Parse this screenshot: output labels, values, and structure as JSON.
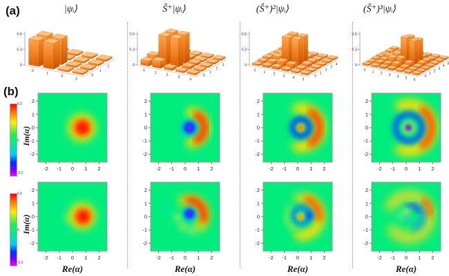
{
  "panel_a": "(a)",
  "panel_b": "(b)",
  "columns": [
    {
      "header": "|ψᵢ⟩"
    },
    {
      "header": "Ŝ⁺|ψᵢ⟩"
    },
    {
      "header": "(Ŝ⁺)²|ψᵢ⟩"
    },
    {
      "header": "(Ŝ⁺)³|ψᵢ⟩"
    }
  ],
  "axes": {
    "x_label": "Re(α)",
    "y_label": "Im(α)",
    "ticks": [
      "-2",
      "-1",
      "0",
      "1",
      "2"
    ],
    "range": 2.6
  },
  "colorbar": {
    "top_label": "0.2",
    "mid_label": "0",
    "bottom_label": "-0.2",
    "stops": [
      [
        "#ff0000",
        0
      ],
      [
        "#ff7f00",
        12
      ],
      [
        "#ffee00",
        25
      ],
      [
        "#22ee55",
        42
      ],
      [
        "#00ee88",
        55
      ],
      [
        "#00ccff",
        70
      ],
      [
        "#0033ff",
        81
      ],
      [
        "#7700ff",
        91
      ],
      [
        "#ff00ff",
        100
      ]
    ]
  },
  "colors": {
    "wigner_bg": "#00ec7c",
    "frame": "#9a9a9a",
    "bar_top": "#ffc182",
    "bar_front_light": "#ffa64d",
    "bar_front_dark": "#e06000",
    "bar_side_light": "#ff8c26",
    "bar_side_dark": "#c35300",
    "axis_text": "#333333"
  },
  "chart_data": [
    {
      "type": "bar3d",
      "title": "density matrix of |psi_i>",
      "zmax": 0.6,
      "zticks": [
        [
          "0",
          0
        ],
        [
          "0.3",
          0.3
        ],
        [
          "0.6",
          0.6
        ]
      ],
      "heights": [
        [
          0.5,
          0.5,
          0.03,
          0.03
        ],
        [
          0.5,
          0.5,
          0.03,
          0.03
        ],
        [
          0.03,
          0.03,
          0.03,
          0.03
        ],
        [
          0.03,
          0.03,
          0.03,
          0.03
        ]
      ]
    },
    {
      "type": "bar3d",
      "title": "density matrix of S+|psi_i>",
      "zmax": 0.6,
      "zticks": [
        [
          "0",
          0
        ],
        [
          "0.3",
          0.3
        ],
        [
          "0.6",
          0.6
        ]
      ],
      "heights": [
        [
          0.1,
          0.14,
          0.05,
          0.03,
          0.03
        ],
        [
          0.14,
          0.55,
          0.55,
          0.05,
          0.03
        ],
        [
          0.05,
          0.55,
          0.55,
          0.05,
          0.03
        ],
        [
          0.03,
          0.05,
          0.05,
          0.03,
          0.03
        ],
        [
          0.03,
          0.03,
          0.03,
          0.03,
          0.03
        ]
      ]
    },
    {
      "type": "bar3d",
      "title": "density matrix of (S+)^2|psi_i>",
      "zmax": 0.6,
      "zticks": [
        [
          "0",
          0
        ],
        [
          "0.3",
          0.3
        ],
        [
          "0.6",
          0.6
        ]
      ],
      "heights": [
        [
          0.03,
          0.04,
          0.05,
          0.04,
          0.03,
          0.03
        ],
        [
          0.04,
          0.06,
          0.1,
          0.08,
          0.04,
          0.03
        ],
        [
          0.05,
          0.1,
          0.5,
          0.5,
          0.06,
          0.03
        ],
        [
          0.04,
          0.08,
          0.5,
          0.5,
          0.06,
          0.03
        ],
        [
          0.03,
          0.04,
          0.06,
          0.06,
          0.04,
          0.03
        ],
        [
          0.03,
          0.03,
          0.03,
          0.03,
          0.03,
          0.03
        ]
      ]
    },
    {
      "type": "bar3d",
      "title": "density matrix of (S+)^3|psi_i>",
      "zmax": 0.6,
      "zticks": [
        [
          "0",
          0
        ],
        [
          "0.3",
          0.3
        ],
        [
          "0.6",
          0.6
        ]
      ],
      "heights": [
        [
          0.03,
          0.03,
          0.04,
          0.04,
          0.03,
          0.03,
          0.03
        ],
        [
          0.03,
          0.05,
          0.06,
          0.08,
          0.05,
          0.03,
          0.03
        ],
        [
          0.04,
          0.06,
          0.12,
          0.14,
          0.08,
          0.04,
          0.03
        ],
        [
          0.04,
          0.08,
          0.14,
          0.48,
          0.45,
          0.06,
          0.03
        ],
        [
          0.03,
          0.05,
          0.08,
          0.45,
          0.42,
          0.06,
          0.03
        ],
        [
          0.03,
          0.03,
          0.04,
          0.06,
          0.06,
          0.04,
          0.03
        ],
        [
          0.03,
          0.03,
          0.03,
          0.03,
          0.03,
          0.03,
          0.03
        ]
      ]
    },
    {
      "type": "heatmap",
      "title": "Wigner function, ideal |psi_i>",
      "features": [
        {
          "kind": "disc",
          "x": 0.7,
          "y": 0.0,
          "r": 1.0,
          "color": "#ffee00",
          "blur": 7
        },
        {
          "kind": "disc",
          "x": 0.72,
          "y": 0.0,
          "r": 0.72,
          "color": "#ff8800",
          "blur": 5
        },
        {
          "kind": "disc",
          "x": 0.75,
          "y": 0.0,
          "r": 0.5,
          "color": "#ff1500",
          "blur": 4
        }
      ]
    },
    {
      "type": "heatmap",
      "title": "Wigner function, ideal S+|psi_i>",
      "features": [
        {
          "kind": "arc",
          "x": 0.35,
          "y": 0,
          "r": 1.15,
          "width": 0.75,
          "a0": -85,
          "a1": 85,
          "color": "#ffe000",
          "blur": 6
        },
        {
          "kind": "arc",
          "x": 0.35,
          "y": 0,
          "r": 1.1,
          "width": 0.5,
          "a0": -62,
          "a1": 62,
          "color": "#ff2200",
          "blur": 5
        },
        {
          "kind": "disc",
          "x": 0.33,
          "y": 0,
          "r": 0.6,
          "color": "#00bbee",
          "blur": 4
        },
        {
          "kind": "disc",
          "x": 0.33,
          "y": 0,
          "r": 0.42,
          "color": "#0033ff",
          "blur": 3
        },
        {
          "kind": "disc",
          "x": 0.33,
          "y": 0,
          "r": 0.2,
          "color": "#8822ff",
          "blur": 2
        }
      ]
    },
    {
      "type": "heatmap",
      "title": "Wigner function, ideal (S+)^2|psi_i>",
      "features": [
        {
          "kind": "arc",
          "x": 0.25,
          "y": 0,
          "r": 1.45,
          "width": 0.8,
          "a0": -100,
          "a1": 100,
          "color": "#ffe000",
          "blur": 6
        },
        {
          "kind": "arc",
          "x": 0.25,
          "y": 0,
          "r": 1.4,
          "width": 0.5,
          "a0": -58,
          "a1": 58,
          "color": "#ff3300",
          "blur": 5
        },
        {
          "kind": "arc",
          "x": 0.25,
          "y": 0,
          "r": 0.62,
          "width": 0.42,
          "a0": 0,
          "a1": 360,
          "color": "#0044ff",
          "blur": 4
        },
        {
          "kind": "disc",
          "x": 0.22,
          "y": 0,
          "r": 0.3,
          "color": "#ffcc00",
          "blur": 3
        },
        {
          "kind": "disc",
          "x": 0.22,
          "y": 0,
          "r": 0.16,
          "color": "#ff5500",
          "blur": 2
        }
      ]
    },
    {
      "type": "heatmap",
      "title": "Wigner function, ideal (S+)^3|psi_i>",
      "features": [
        {
          "kind": "arc",
          "x": 0.2,
          "y": 0,
          "r": 1.75,
          "width": 0.8,
          "a0": -110,
          "a1": 110,
          "color": "#ffe000",
          "blur": 6
        },
        {
          "kind": "arc",
          "x": 0.2,
          "y": 0,
          "r": 1.72,
          "width": 0.5,
          "a0": -52,
          "a1": 52,
          "color": "#ff4400",
          "blur": 5
        },
        {
          "kind": "arc",
          "x": 0.2,
          "y": 0,
          "r": 1.0,
          "width": 0.4,
          "a0": 0,
          "a1": 360,
          "color": "#0055ff",
          "blur": 4
        },
        {
          "kind": "disc",
          "x": 0.18,
          "y": 0,
          "r": 0.45,
          "color": "#cbee44",
          "blur": 4
        },
        {
          "kind": "disc",
          "x": 0.18,
          "y": 0,
          "r": 0.26,
          "color": "#2233ee",
          "blur": 3
        },
        {
          "kind": "disc",
          "x": 0.18,
          "y": 0,
          "r": 0.14,
          "color": "#8822ee",
          "blur": 2
        }
      ]
    },
    {
      "type": "heatmap",
      "title": "Wigner function, reconstructed |psi_i>",
      "features": [
        {
          "kind": "disc",
          "x": -0.75,
          "y": 0.55,
          "r": 0.3,
          "color": "#00ddcc",
          "blur": 6,
          "opacity": 0.75
        },
        {
          "kind": "disc",
          "x": -0.45,
          "y": -0.8,
          "r": 0.3,
          "color": "#00ddcc",
          "blur": 6,
          "opacity": 0.75
        },
        {
          "kind": "disc",
          "x": -0.15,
          "y": -0.1,
          "r": 0.35,
          "color": "#77ee44",
          "blur": 6,
          "opacity": 0.9
        },
        {
          "kind": "disc",
          "x": 0.72,
          "y": 0.05,
          "r": 0.95,
          "color": "#ffee00",
          "blur": 7
        },
        {
          "kind": "disc",
          "x": 0.78,
          "y": 0.02,
          "r": 0.7,
          "color": "#ff8800",
          "blur": 5
        },
        {
          "kind": "disc",
          "x": 0.8,
          "y": 0.0,
          "r": 0.48,
          "color": "#ff1500",
          "blur": 4
        }
      ]
    },
    {
      "type": "heatmap",
      "title": "Wigner function, reconstructed S+|psi_i>",
      "features": [
        {
          "kind": "arc",
          "x": 0.3,
          "y": 0.1,
          "r": 1.15,
          "width": 0.75,
          "a0": -45,
          "a1": 110,
          "color": "#ffe000",
          "blur": 6
        },
        {
          "kind": "arc",
          "x": 0.3,
          "y": 0.1,
          "r": 1.12,
          "width": 0.5,
          "a0": -18,
          "a1": 92,
          "color": "#ff2200",
          "blur": 5
        },
        {
          "kind": "disc",
          "x": -0.55,
          "y": -0.05,
          "r": 0.3,
          "color": "#aaee55",
          "blur": 5
        },
        {
          "kind": "disc",
          "x": -0.15,
          "y": -0.75,
          "r": 0.3,
          "color": "#aaee55",
          "blur": 5
        },
        {
          "kind": "disc",
          "x": 0.5,
          "y": -1.05,
          "r": 0.25,
          "color": "#ccee66",
          "blur": 5
        },
        {
          "kind": "disc",
          "x": -1.35,
          "y": 0.6,
          "r": 0.3,
          "color": "#00ddcc",
          "blur": 6,
          "opacity": 0.6
        },
        {
          "kind": "disc",
          "x": 0.32,
          "y": 0.2,
          "r": 0.5,
          "color": "#00bbee",
          "blur": 4
        },
        {
          "kind": "disc",
          "x": 0.33,
          "y": 0.22,
          "r": 0.36,
          "color": "#0033ff",
          "blur": 3
        },
        {
          "kind": "disc",
          "x": 0.33,
          "y": 0.22,
          "r": 0.17,
          "color": "#7722ff",
          "blur": 2
        }
      ]
    },
    {
      "type": "heatmap",
      "title": "Wigner function, reconstructed (S+)^2|psi_i>",
      "features": [
        {
          "kind": "arc",
          "x": 0.25,
          "y": 0,
          "r": 1.42,
          "width": 0.75,
          "a0": -95,
          "a1": 95,
          "color": "#ffe000",
          "blur": 6
        },
        {
          "kind": "arc",
          "x": 0.25,
          "y": 0,
          "r": 1.38,
          "width": 0.5,
          "a0": -5,
          "a1": 70,
          "color": "#ff5500",
          "blur": 5
        },
        {
          "kind": "arc",
          "x": 0.25,
          "y": 0,
          "r": 1.0,
          "width": 0.4,
          "a0": 140,
          "a1": 255,
          "color": "#88ee44",
          "blur": 5
        },
        {
          "kind": "arc",
          "x": 0.3,
          "y": 0.1,
          "r": 0.6,
          "width": 0.38,
          "a0": 0,
          "a1": 360,
          "color": "#0088ee",
          "blur": 4
        },
        {
          "kind": "disc",
          "x": 0.85,
          "y": 0.1,
          "r": 0.28,
          "color": "#0044ff",
          "blur": 4
        },
        {
          "kind": "disc",
          "x": 0.05,
          "y": 1.75,
          "r": 0.28,
          "color": "#00ddcc",
          "blur": 6,
          "opacity": 0.6
        },
        {
          "kind": "disc",
          "x": 0.22,
          "y": 0,
          "r": 0.28,
          "color": "#ffdd00",
          "blur": 3
        },
        {
          "kind": "disc",
          "x": 0.22,
          "y": 0,
          "r": 0.15,
          "color": "#ff7700",
          "blur": 2
        }
      ]
    },
    {
      "type": "heatmap",
      "title": "Wigner function, reconstructed (S+)^3|psi_i>",
      "features": [
        {
          "kind": "arc",
          "x": 0.2,
          "y": 0,
          "r": 1.6,
          "width": 0.75,
          "a0": -140,
          "a1": 150,
          "color": "#eedd22",
          "blur": 7,
          "opacity": 0.95
        },
        {
          "kind": "arc",
          "x": 0.2,
          "y": 0.05,
          "r": 1.62,
          "width": 0.5,
          "a0": 5,
          "a1": 45,
          "color": "#ff6600",
          "blur": 5
        },
        {
          "kind": "arc",
          "x": 0.3,
          "y": 0,
          "r": 0.95,
          "width": 0.35,
          "a0": -70,
          "a1": 60,
          "color": "#0099ee",
          "blur": 5
        },
        {
          "kind": "arc",
          "x": 0.3,
          "y": 0.1,
          "r": 0.75,
          "width": 0.3,
          "a0": 25,
          "a1": 105,
          "color": "#2255ee",
          "blur": 4
        },
        {
          "kind": "disc",
          "x": 0.0,
          "y": 0.35,
          "r": 0.3,
          "color": "#aaee66",
          "blur": 4,
          "opacity": 0.85
        },
        {
          "kind": "disc",
          "x": -0.4,
          "y": 0.0,
          "r": 0.25,
          "color": "#66ee88",
          "blur": 4,
          "opacity": 0.85
        },
        {
          "kind": "disc",
          "x": 0.2,
          "y": -0.35,
          "r": 0.2,
          "color": "#44aaee",
          "blur": 4,
          "opacity": 0.7
        },
        {
          "kind": "disc",
          "x": 0.05,
          "y": 0.05,
          "r": 0.14,
          "color": "#aa88ee",
          "blur": 3,
          "opacity": 0.7
        }
      ]
    }
  ]
}
